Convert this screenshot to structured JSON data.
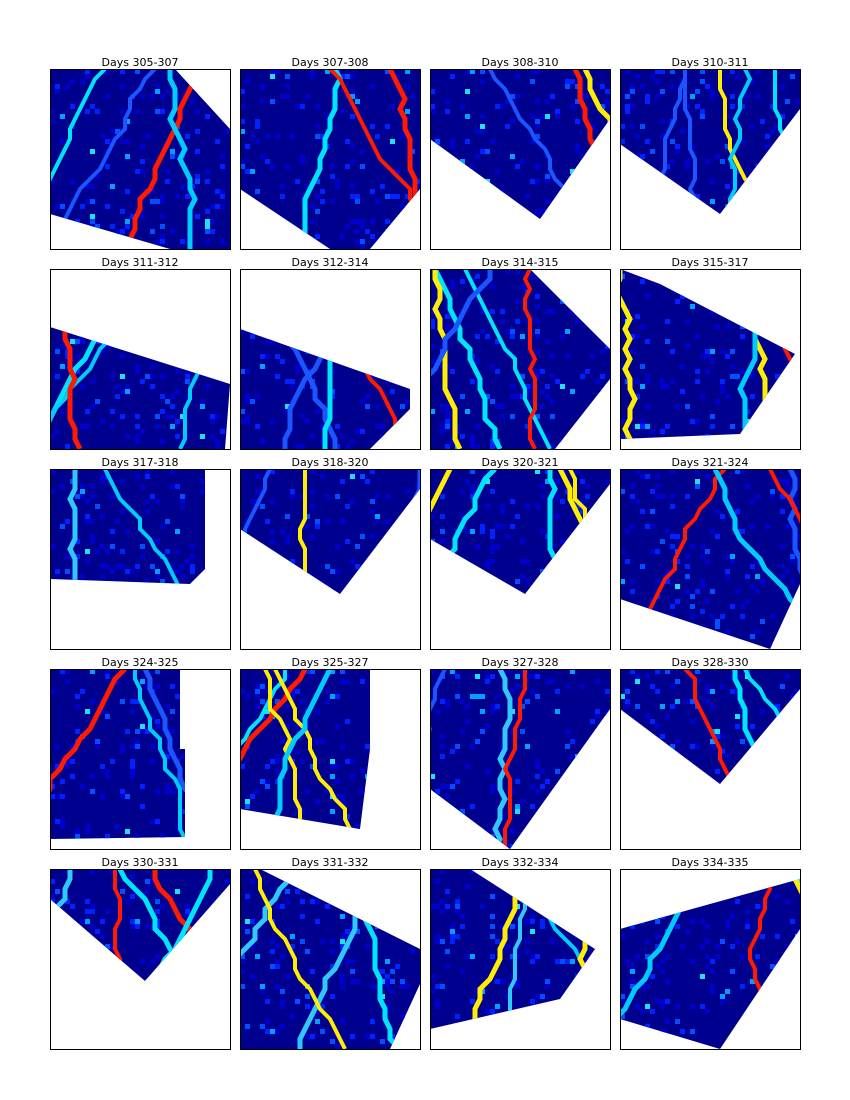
{
  "panels": [
    {
      "title": "Days 305-307"
    },
    {
      "title": "Days 307-308"
    },
    {
      "title": "Days 308-310"
    },
    {
      "title": "Days 310-311"
    },
    {
      "title": "Days 311-312"
    },
    {
      "title": "Days 312-314"
    },
    {
      "title": "Days 314-315"
    },
    {
      "title": "Days 315-317"
    },
    {
      "title": "Days 317-318"
    },
    {
      "title": "Days 318-320"
    },
    {
      "title": "Days 320-321"
    },
    {
      "title": "Days 321-324"
    },
    {
      "title": "Days 324-325"
    },
    {
      "title": "Days 325-327"
    },
    {
      "title": "Days 327-328"
    },
    {
      "title": "Days 328-330"
    },
    {
      "title": "Days 330-331"
    },
    {
      "title": "Days 331-332"
    },
    {
      "title": "Days 332-334"
    },
    {
      "title": "Days 334-335"
    }
  ]
}
